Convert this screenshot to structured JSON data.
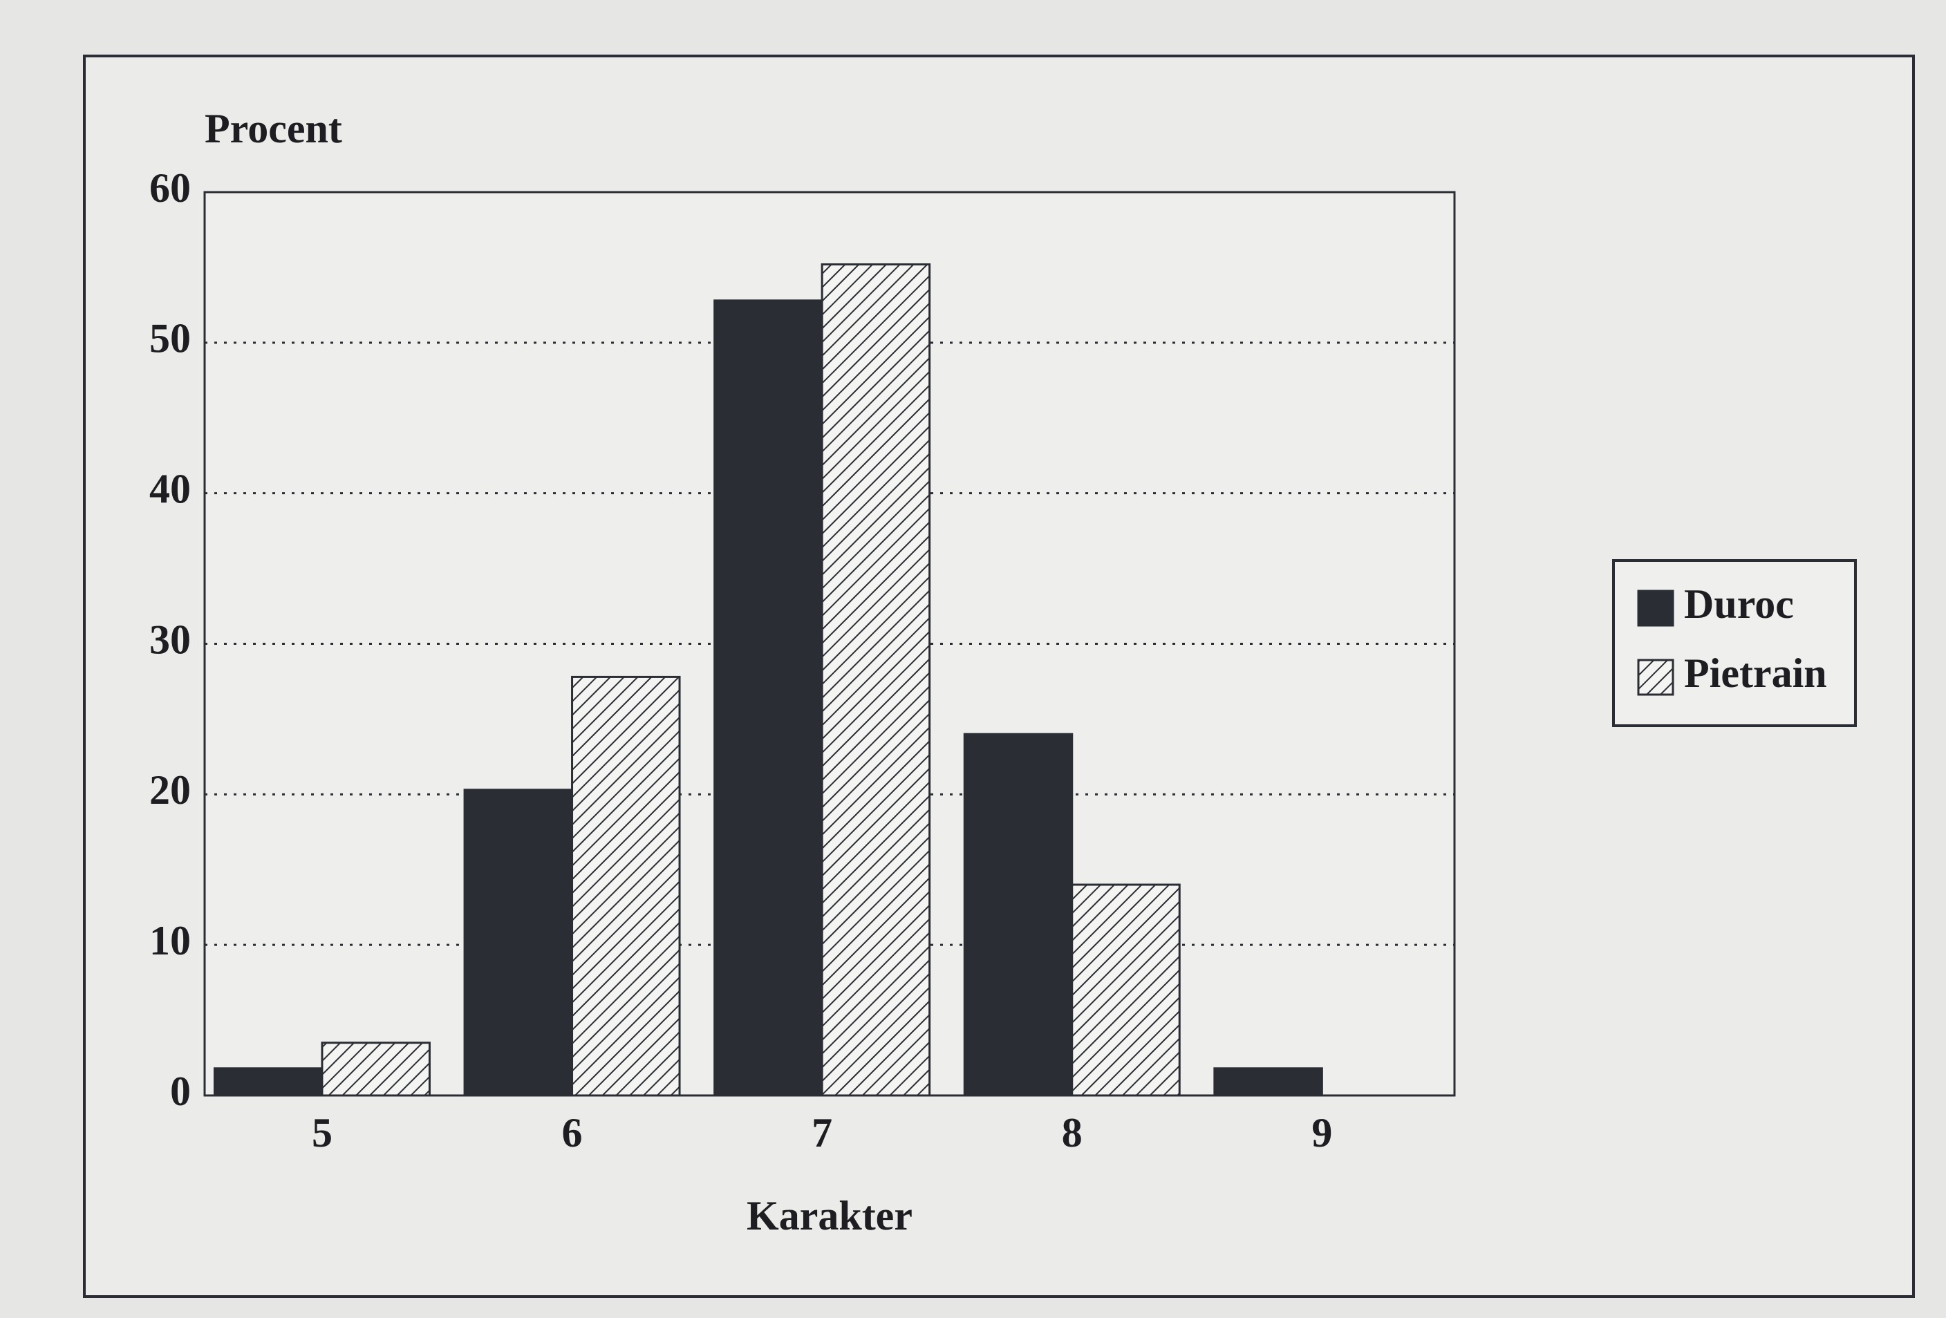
{
  "chart_data": {
    "type": "bar",
    "y_label": "Procent",
    "x_label": "Karakter",
    "categories": [
      "5",
      "6",
      "7",
      "8",
      "9"
    ],
    "series": [
      {
        "name": "Duroc",
        "color": "#2a2d33",
        "values": [
          1.8,
          20.3,
          52.8,
          24,
          1.8
        ]
      },
      {
        "name": "Pietrain",
        "color": "#f4f4f2",
        "pattern": "hatch",
        "values": [
          3.5,
          27.8,
          55.2,
          14,
          0
        ]
      }
    ],
    "ylim": [
      0,
      60
    ],
    "yticks": [
      0,
      10,
      20,
      30,
      40,
      50,
      60
    ],
    "grid": true,
    "legend": "right"
  }
}
